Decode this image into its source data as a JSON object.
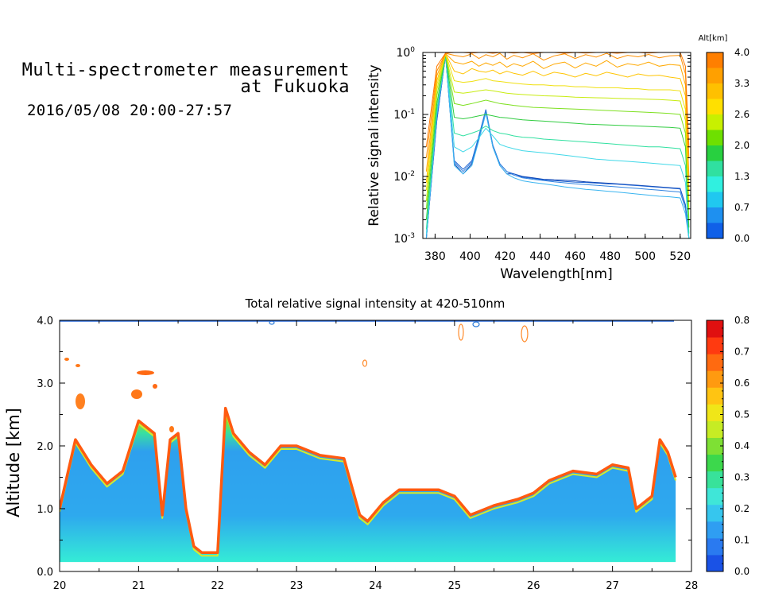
{
  "header": {
    "title_line1": "Multi-spectrometer measurement",
    "title_line2": "at Fukuoka",
    "datetime": "2016/05/08 20:00-27:57"
  },
  "chart_data": [
    {
      "type": "line",
      "xlabel": "Wavelength[nm]",
      "ylabel": "Relative signal intensity",
      "xlim": [
        373,
        526
      ],
      "ylim": [
        0.001,
        1
      ],
      "yscale": "log",
      "xticks": [
        "380",
        "400",
        "420",
        "440",
        "460",
        "480",
        "500",
        "520"
      ],
      "yticks": [
        "10^-3",
        "10^-2",
        "10^-1",
        "10^0"
      ],
      "grid": false,
      "colorbar": {
        "title": "Alt[km]",
        "ticks": [
          "4.0",
          "3.3",
          "2.6",
          "2.0",
          "1.3",
          "0.7",
          "0.0"
        ],
        "colors": [
          "#ff7f00",
          "#ffa000",
          "#ffc000",
          "#ffe000",
          "#c8f000",
          "#6ee000",
          "#28d040",
          "#30e0a0",
          "#30f0e0",
          "#20c8f0",
          "#1e90f0",
          "#1060e8"
        ]
      },
      "x": [
        375,
        381,
        386,
        391,
        396,
        401,
        405,
        409,
        413,
        417,
        421,
        425,
        430,
        436,
        442,
        448,
        454,
        460,
        466,
        472,
        478,
        484,
        490,
        496,
        502,
        508,
        514,
        520,
        523,
        525
      ],
      "series": [
        {
          "alt": 0.0,
          "color": "#0a3fae",
          "values": [
            0.0008,
            0.08,
            0.9,
            0.016,
            0.011,
            0.016,
            0.04,
            0.11,
            0.03,
            0.015,
            0.011,
            0.011,
            0.01,
            0.0095,
            0.009,
            0.0088,
            0.0087,
            0.0085,
            0.0082,
            0.008,
            0.0078,
            0.0076,
            0.0074,
            0.0072,
            0.007,
            0.0068,
            0.0066,
            0.0064,
            0.0035,
            0.0008
          ]
        },
        {
          "alt": 0.2,
          "color": "#1a5fd0",
          "values": [
            0.0008,
            0.08,
            0.9,
            0.018,
            0.013,
            0.018,
            0.045,
            0.12,
            0.032,
            0.016,
            0.012,
            0.011,
            0.0098,
            0.0093,
            0.0088,
            0.0086,
            0.0083,
            0.0081,
            0.008,
            0.0078,
            0.0076,
            0.0075,
            0.0073,
            0.0071,
            0.0069,
            0.0067,
            0.0065,
            0.0063,
            0.0034,
            0.0009
          ]
        },
        {
          "alt": 0.5,
          "color": "#2f82e0",
          "values": [
            0.0009,
            0.09,
            0.9,
            0.017,
            0.012,
            0.017,
            0.042,
            0.115,
            0.031,
            0.016,
            0.012,
            0.0105,
            0.0095,
            0.009,
            0.0086,
            0.0082,
            0.0079,
            0.0076,
            0.0074,
            0.0072,
            0.007,
            0.0068,
            0.0066,
            0.0064,
            0.0062,
            0.006,
            0.0058,
            0.0056,
            0.003,
            0.0009
          ]
        },
        {
          "alt": 0.8,
          "color": "#3ab4f0",
          "values": [
            0.001,
            0.1,
            0.92,
            0.015,
            0.011,
            0.015,
            0.038,
            0.105,
            0.03,
            0.015,
            0.011,
            0.0095,
            0.0085,
            0.008,
            0.0076,
            0.0072,
            0.0068,
            0.0065,
            0.0062,
            0.006,
            0.0058,
            0.0056,
            0.0054,
            0.0052,
            0.005,
            0.0048,
            0.0047,
            0.0045,
            0.0025,
            0.0009
          ]
        },
        {
          "alt": 1.0,
          "color": "#40d8e8",
          "values": [
            0.0012,
            0.11,
            0.92,
            0.03,
            0.025,
            0.03,
            0.042,
            0.06,
            0.045,
            0.033,
            0.03,
            0.028,
            0.026,
            0.025,
            0.024,
            0.023,
            0.022,
            0.021,
            0.02,
            0.019,
            0.0185,
            0.018,
            0.0175,
            0.017,
            0.0165,
            0.016,
            0.0155,
            0.015,
            0.008,
            0.001
          ]
        },
        {
          "alt": 1.3,
          "color": "#30e0a0",
          "values": [
            0.0014,
            0.12,
            0.93,
            0.05,
            0.045,
            0.05,
            0.055,
            0.065,
            0.055,
            0.05,
            0.048,
            0.045,
            0.043,
            0.042,
            0.04,
            0.039,
            0.038,
            0.037,
            0.036,
            0.035,
            0.034,
            0.033,
            0.032,
            0.031,
            0.03,
            0.03,
            0.029,
            0.028,
            0.015,
            0.0012
          ]
        },
        {
          "alt": 1.7,
          "color": "#30cc40",
          "values": [
            0.002,
            0.15,
            0.93,
            0.09,
            0.085,
            0.09,
            0.095,
            0.1,
            0.095,
            0.09,
            0.088,
            0.085,
            0.082,
            0.08,
            0.078,
            0.076,
            0.074,
            0.072,
            0.07,
            0.069,
            0.068,
            0.067,
            0.066,
            0.065,
            0.064,
            0.063,
            0.062,
            0.06,
            0.03,
            0.0015
          ]
        },
        {
          "alt": 2.0,
          "color": "#7ee020",
          "values": [
            0.003,
            0.2,
            0.94,
            0.15,
            0.14,
            0.15,
            0.16,
            0.17,
            0.16,
            0.15,
            0.145,
            0.14,
            0.135,
            0.13,
            0.128,
            0.126,
            0.124,
            0.122,
            0.12,
            0.118,
            0.116,
            0.114,
            0.112,
            0.11,
            0.108,
            0.106,
            0.104,
            0.1,
            0.05,
            0.002
          ]
        },
        {
          "alt": 2.3,
          "color": "#c8ec10",
          "values": [
            0.004,
            0.25,
            0.94,
            0.23,
            0.22,
            0.23,
            0.24,
            0.25,
            0.24,
            0.23,
            0.22,
            0.215,
            0.21,
            0.205,
            0.2,
            0.198,
            0.195,
            0.19,
            0.188,
            0.186,
            0.184,
            0.182,
            0.18,
            0.178,
            0.176,
            0.174,
            0.17,
            0.165,
            0.08,
            0.003
          ]
        },
        {
          "alt": 2.7,
          "color": "#f0e010",
          "values": [
            0.006,
            0.3,
            0.95,
            0.35,
            0.33,
            0.34,
            0.36,
            0.38,
            0.35,
            0.34,
            0.33,
            0.32,
            0.31,
            0.3,
            0.3,
            0.29,
            0.29,
            0.28,
            0.28,
            0.27,
            0.27,
            0.27,
            0.26,
            0.26,
            0.25,
            0.25,
            0.25,
            0.24,
            0.12,
            0.004
          ]
        },
        {
          "alt": 3.0,
          "color": "#ffc400",
          "values": [
            0.008,
            0.35,
            0.95,
            0.5,
            0.45,
            0.55,
            0.5,
            0.48,
            0.52,
            0.45,
            0.5,
            0.46,
            0.43,
            0.5,
            0.42,
            0.48,
            0.45,
            0.4,
            0.46,
            0.42,
            0.48,
            0.44,
            0.4,
            0.45,
            0.42,
            0.43,
            0.4,
            0.38,
            0.2,
            0.006
          ]
        },
        {
          "alt": 3.3,
          "color": "#ffa800",
          "values": [
            0.012,
            0.42,
            0.96,
            0.7,
            0.65,
            0.72,
            0.6,
            0.68,
            0.62,
            0.7,
            0.58,
            0.66,
            0.6,
            0.72,
            0.55,
            0.65,
            0.7,
            0.56,
            0.68,
            0.6,
            0.74,
            0.58,
            0.66,
            0.62,
            0.7,
            0.6,
            0.64,
            0.62,
            0.3,
            0.01
          ]
        },
        {
          "alt": 3.7,
          "color": "#ff9000",
          "values": [
            0.02,
            0.5,
            0.97,
            0.9,
            0.85,
            0.95,
            0.8,
            0.92,
            0.85,
            0.97,
            0.78,
            0.9,
            0.82,
            0.95,
            0.75,
            0.88,
            0.95,
            0.8,
            0.92,
            0.84,
            0.97,
            0.8,
            0.9,
            0.85,
            0.93,
            0.82,
            0.88,
            0.9,
            0.45,
            0.02
          ]
        },
        {
          "alt": 4.0,
          "color": "#ff7800",
          "values": [
            0.03,
            0.6,
            0.98,
            1.0,
            1.0,
            0.98,
            1.0,
            1.0,
            0.97,
            1.0,
            1.0,
            0.98,
            1.0,
            0.96,
            1.0,
            1.0,
            0.97,
            1.0,
            0.98,
            1.0,
            1.0,
            0.97,
            1.0,
            1.0,
            0.98,
            1.0,
            1.0,
            1.0,
            0.6,
            0.03
          ]
        }
      ]
    },
    {
      "type": "heatmap",
      "title": "Total relative signal intensity at 420-510nm",
      "ylabel": "Altitude [km]",
      "xlim": [
        20,
        28
      ],
      "ylim": [
        0,
        4
      ],
      "xticks": [
        "20",
        "21",
        "22",
        "23",
        "24",
        "25",
        "26",
        "27",
        "28"
      ],
      "yticks": [
        "0.0",
        "1.0",
        "2.0",
        "3.0",
        "4.0"
      ],
      "data_xmax": 27.8,
      "data_ymin": 0.15,
      "colorbar": {
        "range": [
          0,
          0.8
        ],
        "ticks": [
          "0.0",
          "0.1",
          "0.2",
          "0.3",
          "0.4",
          "0.5",
          "0.6",
          "0.7",
          "0.8"
        ],
        "colors": [
          "#1a52e6",
          "#2a7af0",
          "#2f9ef2",
          "#36c6ee",
          "#3fe6d8",
          "#38e29a",
          "#3cd84c",
          "#7ee034",
          "#c6ec24",
          "#f0e618",
          "#ffc412",
          "#ff9a10",
          "#ff6a10",
          "#ff3a10",
          "#e01010"
        ]
      },
      "top_hours": [
        20.0,
        20.2,
        20.4,
        20.6,
        20.8,
        21.0,
        21.2,
        21.3,
        21.4,
        21.5,
        21.6,
        21.7,
        21.8,
        22.0,
        22.1,
        22.2,
        22.4,
        22.6,
        22.8,
        23.0,
        23.3,
        23.6,
        23.8,
        23.9,
        24.1,
        24.3,
        24.5,
        24.8,
        25.0,
        25.2,
        25.3,
        25.5,
        25.8,
        26.0,
        26.2,
        26.5,
        26.8,
        27.0,
        27.2,
        27.3,
        27.5,
        27.6,
        27.7,
        27.8
      ],
      "top_altitudes": [
        1.0,
        2.1,
        1.7,
        1.4,
        1.6,
        2.4,
        2.2,
        0.9,
        2.1,
        2.2,
        1.0,
        0.4,
        0.3,
        0.3,
        2.6,
        2.2,
        1.9,
        1.7,
        2.0,
        2.0,
        1.85,
        1.8,
        0.9,
        0.8,
        1.1,
        1.3,
        1.3,
        1.3,
        1.2,
        0.9,
        0.95,
        1.05,
        1.15,
        1.25,
        1.45,
        1.6,
        1.55,
        1.7,
        1.65,
        1.0,
        1.2,
        2.1,
        1.9,
        1.5
      ]
    }
  ]
}
